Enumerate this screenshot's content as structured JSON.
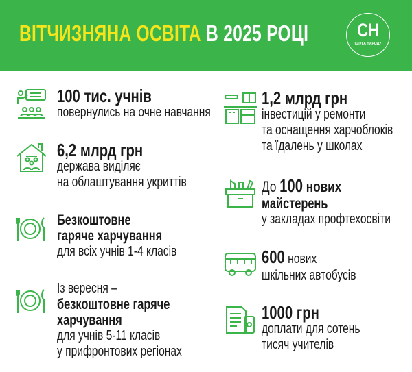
{
  "header": {
    "title_highlight": "ВІТЧИЗНЯНА ОСВІТА",
    "title_rest": "В 2025 РОЦІ",
    "logo_text": "СН",
    "logo_subtext": "СЛУГА НАРОДУ",
    "bg_color": "#3bb54a",
    "accent_color": "#f6e51b"
  },
  "left": [
    {
      "icon": "teacher-class-icon",
      "heading": "100 тис. учнів",
      "lines": [
        "повернулись на очне навчання"
      ]
    },
    {
      "icon": "house-shelter-icon",
      "heading": "6,2 млрд грн",
      "lines": [
        "держава виділяє",
        "на облаштування укриттів"
      ]
    },
    {
      "icon": "meal-plate-icon",
      "bold_lines": [
        "Безкоштовне",
        "гаряче харчування"
      ],
      "lines": [
        "для всіх учнів 1-4 класів"
      ]
    },
    {
      "icon": "meal-plate-icon",
      "intro": "Із вересня –",
      "bold_lines": [
        "безкоштовне гаряче",
        "харчування"
      ],
      "lines": [
        "для учнів 5-11 класів",
        "у прифронтових регіонах"
      ]
    }
  ],
  "right": [
    {
      "icon": "kitchen-icon",
      "heading": "1,2 млрд грн",
      "lines": [
        "інвестицій у ремонти",
        "та оснащення харчоблоків",
        "та їдалень у школах"
      ]
    },
    {
      "icon": "toolbox-icon",
      "prefix": "До",
      "number": "100",
      "suffix": "нових",
      "bold_line": "майстерень",
      "lines": [
        "у закладах профтехосвіти"
      ]
    },
    {
      "icon": "bus-icon",
      "number": "600",
      "suffix": "нових",
      "lines": [
        "шкільних автобусів"
      ]
    },
    {
      "icon": "money-document-icon",
      "heading": "1000 грн",
      "lines": [
        "доплати для сотень",
        "тисяч учителів"
      ]
    }
  ]
}
